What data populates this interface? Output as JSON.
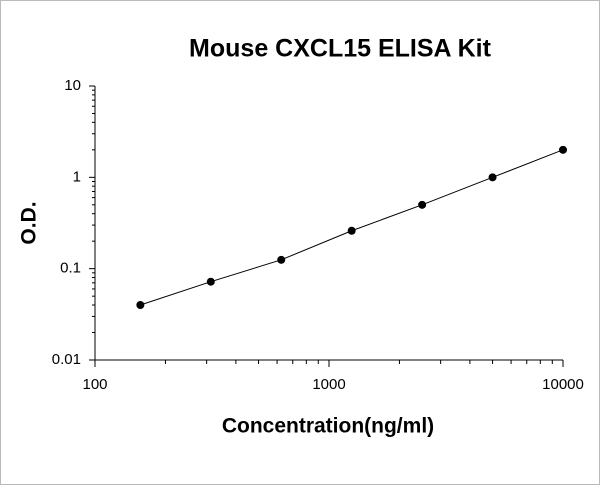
{
  "chart_data": {
    "type": "scatter",
    "title": "Mouse CXCL15 ELISA Kit",
    "x_label": "Concentration(ng/ml)",
    "y_label": "O.D.",
    "x": [
      156.25,
      312.5,
      625,
      1250,
      2500,
      5000,
      10000
    ],
    "values": [
      0.04,
      0.072,
      0.125,
      0.26,
      0.5,
      1.0,
      2.0
    ],
    "color": "#000000",
    "line": true,
    "x_log": true,
    "y_log": true,
    "xlim": [
      100,
      10000
    ],
    "xticks": [
      100,
      1000,
      10000
    ],
    "ylim": [
      0.01,
      10
    ],
    "yticks": [
      0.01,
      0.1,
      1,
      10
    ]
  }
}
